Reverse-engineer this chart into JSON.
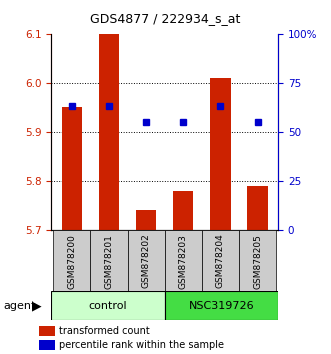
{
  "title": "GDS4877 / 222934_s_at",
  "samples": [
    "GSM878200",
    "GSM878201",
    "GSM878202",
    "GSM878203",
    "GSM878204",
    "GSM878205"
  ],
  "bar_values": [
    5.95,
    6.1,
    5.74,
    5.78,
    6.01,
    5.79
  ],
  "bar_base": 5.7,
  "percentile_values": [
    63,
    63,
    55,
    55,
    63,
    55
  ],
  "ylim": [
    5.7,
    6.1
  ],
  "right_ylim": [
    0,
    100
  ],
  "right_yticks": [
    0,
    25,
    50,
    75,
    100
  ],
  "right_yticklabels": [
    "0",
    "25",
    "50",
    "75",
    "100%"
  ],
  "left_yticks": [
    5.7,
    5.8,
    5.9,
    6.0,
    6.1
  ],
  "bar_color": "#cc2200",
  "percentile_color": "#0000cc",
  "control_color": "#ccffcc",
  "treatment_color": "#44dd44",
  "control_label": "control",
  "treatment_label": "NSC319726",
  "agent_label": "agent",
  "legend_bar_label": "transformed count",
  "legend_percentile_label": "percentile rank within the sample",
  "left_tick_color": "#cc2200",
  "right_tick_color": "#0000cc",
  "sample_box_color": "#cccccc"
}
